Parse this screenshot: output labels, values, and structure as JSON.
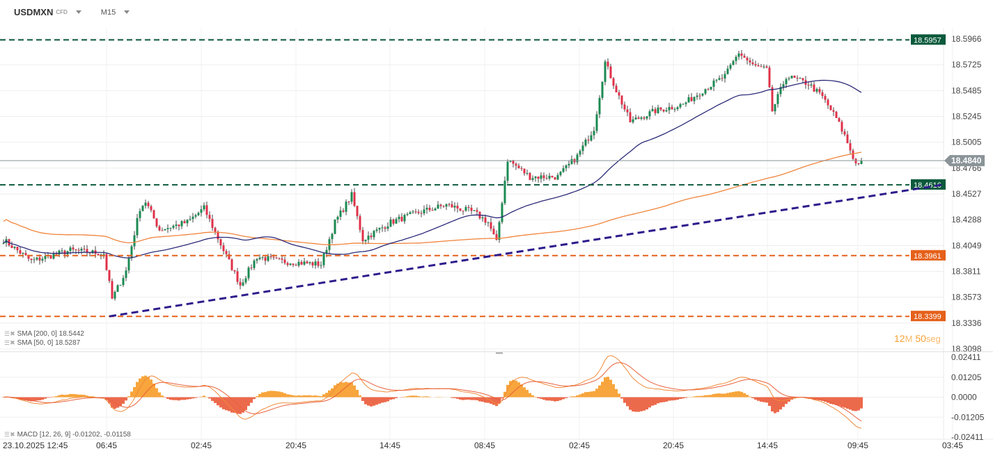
{
  "header": {
    "symbol": "USDMXN",
    "type": "CFD",
    "timeframe": "M15"
  },
  "legend": {
    "sma200": "SMA [200, 0] 18.5442",
    "sma50": "SMA [50, 0] 18.5287",
    "macd": "MACD [12, 26, 9] -0.01202, -0.01158"
  },
  "timer": {
    "value1": "12",
    "unit1": "M",
    "value2": "50",
    "unit2": "seg"
  },
  "colors": {
    "up": "#1b8a52",
    "down": "#e03049",
    "sma50": "#2b2a78",
    "sma200": "#f0843c",
    "green_line": "#0b5a3c",
    "orange_line": "#e5601a",
    "trend": "#2e1c8c",
    "last": "#8a9499",
    "macd_pos": "#f7a53c",
    "macd_neg": "#ec6a4c"
  },
  "chart_data": {
    "type": "candlestick",
    "symbol": "USDMXN",
    "timeframe": "M15",
    "price_ticks": [
      "18.5966",
      "18.5725",
      "18.5485",
      "18.5245",
      "18.5005",
      "18.4766",
      "18.4527",
      "18.4288",
      "18.4049",
      "18.3811",
      "18.3573",
      "18.3336",
      "18.3098"
    ],
    "ylim": [
      18.3098,
      18.5966
    ],
    "macd_ticks": [
      "0.02411",
      "0.01205",
      "0.0000",
      "-0.01205",
      "-0.02411"
    ],
    "macd_ylim": [
      -0.02411,
      0.02411
    ],
    "time_labels": [
      "23.10.2025  12:45",
      "06:45",
      "02:45",
      "20:45",
      "14:45",
      "08:45",
      "02:45",
      "20:45",
      "14:45",
      "09:45",
      "03:45"
    ],
    "candle_count": 309,
    "price_path": [
      [
        0,
        18.4108
      ],
      [
        10,
        18.391
      ],
      [
        24,
        18.401
      ],
      [
        36,
        18.398
      ],
      [
        39,
        18.356
      ],
      [
        44,
        18.382
      ],
      [
        49,
        18.44
      ],
      [
        51,
        18.446
      ],
      [
        56,
        18.42
      ],
      [
        66,
        18.427
      ],
      [
        72,
        18.44
      ],
      [
        79,
        18.401
      ],
      [
        85,
        18.369
      ],
      [
        91,
        18.395
      ],
      [
        99,
        18.391
      ],
      [
        114,
        18.388
      ],
      [
        119,
        18.427
      ],
      [
        125,
        18.452
      ],
      [
        129,
        18.411
      ],
      [
        139,
        18.427
      ],
      [
        149,
        18.436
      ],
      [
        159,
        18.443
      ],
      [
        169,
        18.436
      ],
      [
        174,
        18.427
      ],
      [
        177,
        18.408
      ],
      [
        181,
        18.485
      ],
      [
        189,
        18.469
      ],
      [
        199,
        18.469
      ],
      [
        206,
        18.488
      ],
      [
        212,
        18.514
      ],
      [
        216,
        18.575
      ],
      [
        220,
        18.549
      ],
      [
        225,
        18.52
      ],
      [
        234,
        18.53
      ],
      [
        244,
        18.536
      ],
      [
        251,
        18.549
      ],
      [
        259,
        18.562
      ],
      [
        264,
        18.584
      ],
      [
        269,
        18.572
      ],
      [
        274,
        18.568
      ],
      [
        276,
        18.53
      ],
      [
        281,
        18.562
      ],
      [
        289,
        18.555
      ],
      [
        294,
        18.543
      ],
      [
        299,
        18.523
      ],
      [
        302,
        18.507
      ],
      [
        306,
        18.481
      ],
      [
        308,
        18.484
      ]
    ],
    "horizontal_levels": [
      {
        "value": 18.5957,
        "label": "18.5957",
        "style": "green"
      },
      {
        "value": 18.4616,
        "label": "18.4616",
        "style": "green"
      },
      {
        "value": 18.3961,
        "label": "18.3961",
        "style": "orange"
      },
      {
        "value": 18.3399,
        "label": "18.3399",
        "style": "orange"
      }
    ],
    "trendline": {
      "from": [
        38,
        18.3399
      ],
      "to": [
        337,
        18.4616
      ]
    },
    "last_price": {
      "value": 18.484,
      "label": "18.4840"
    },
    "indicators": [
      "SMA 200",
      "SMA 50",
      "MACD 12,26,9"
    ]
  }
}
